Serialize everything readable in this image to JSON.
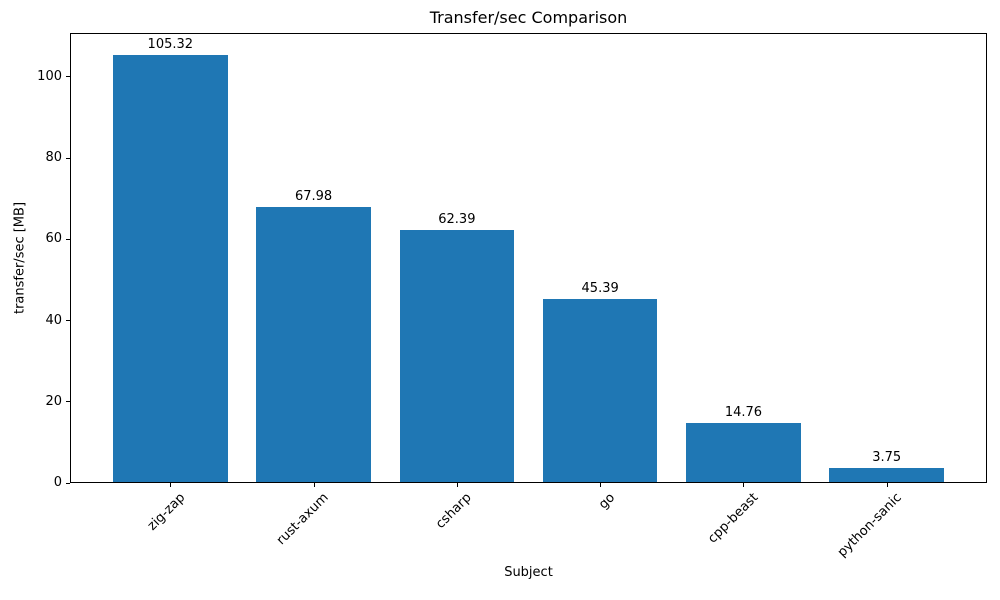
{
  "chart_data": {
    "type": "bar",
    "title": "Transfer/sec Comparison",
    "xlabel": "Subject",
    "ylabel": "transfer/sec [MB]",
    "categories": [
      "zig-zap",
      "rust-axum",
      "csharp",
      "go",
      "cpp-beast",
      "python-sanic"
    ],
    "values": [
      105.32,
      67.98,
      62.39,
      45.39,
      14.76,
      3.75
    ],
    "value_labels": [
      "105.32",
      "67.98",
      "62.39",
      "45.39",
      "14.76",
      "3.75"
    ],
    "yticks": [
      0,
      20,
      40,
      60,
      80,
      100
    ],
    "ylim": [
      0,
      110.8
    ],
    "bar_color": "#1f77b4",
    "grid": false,
    "legend_position": "none"
  }
}
